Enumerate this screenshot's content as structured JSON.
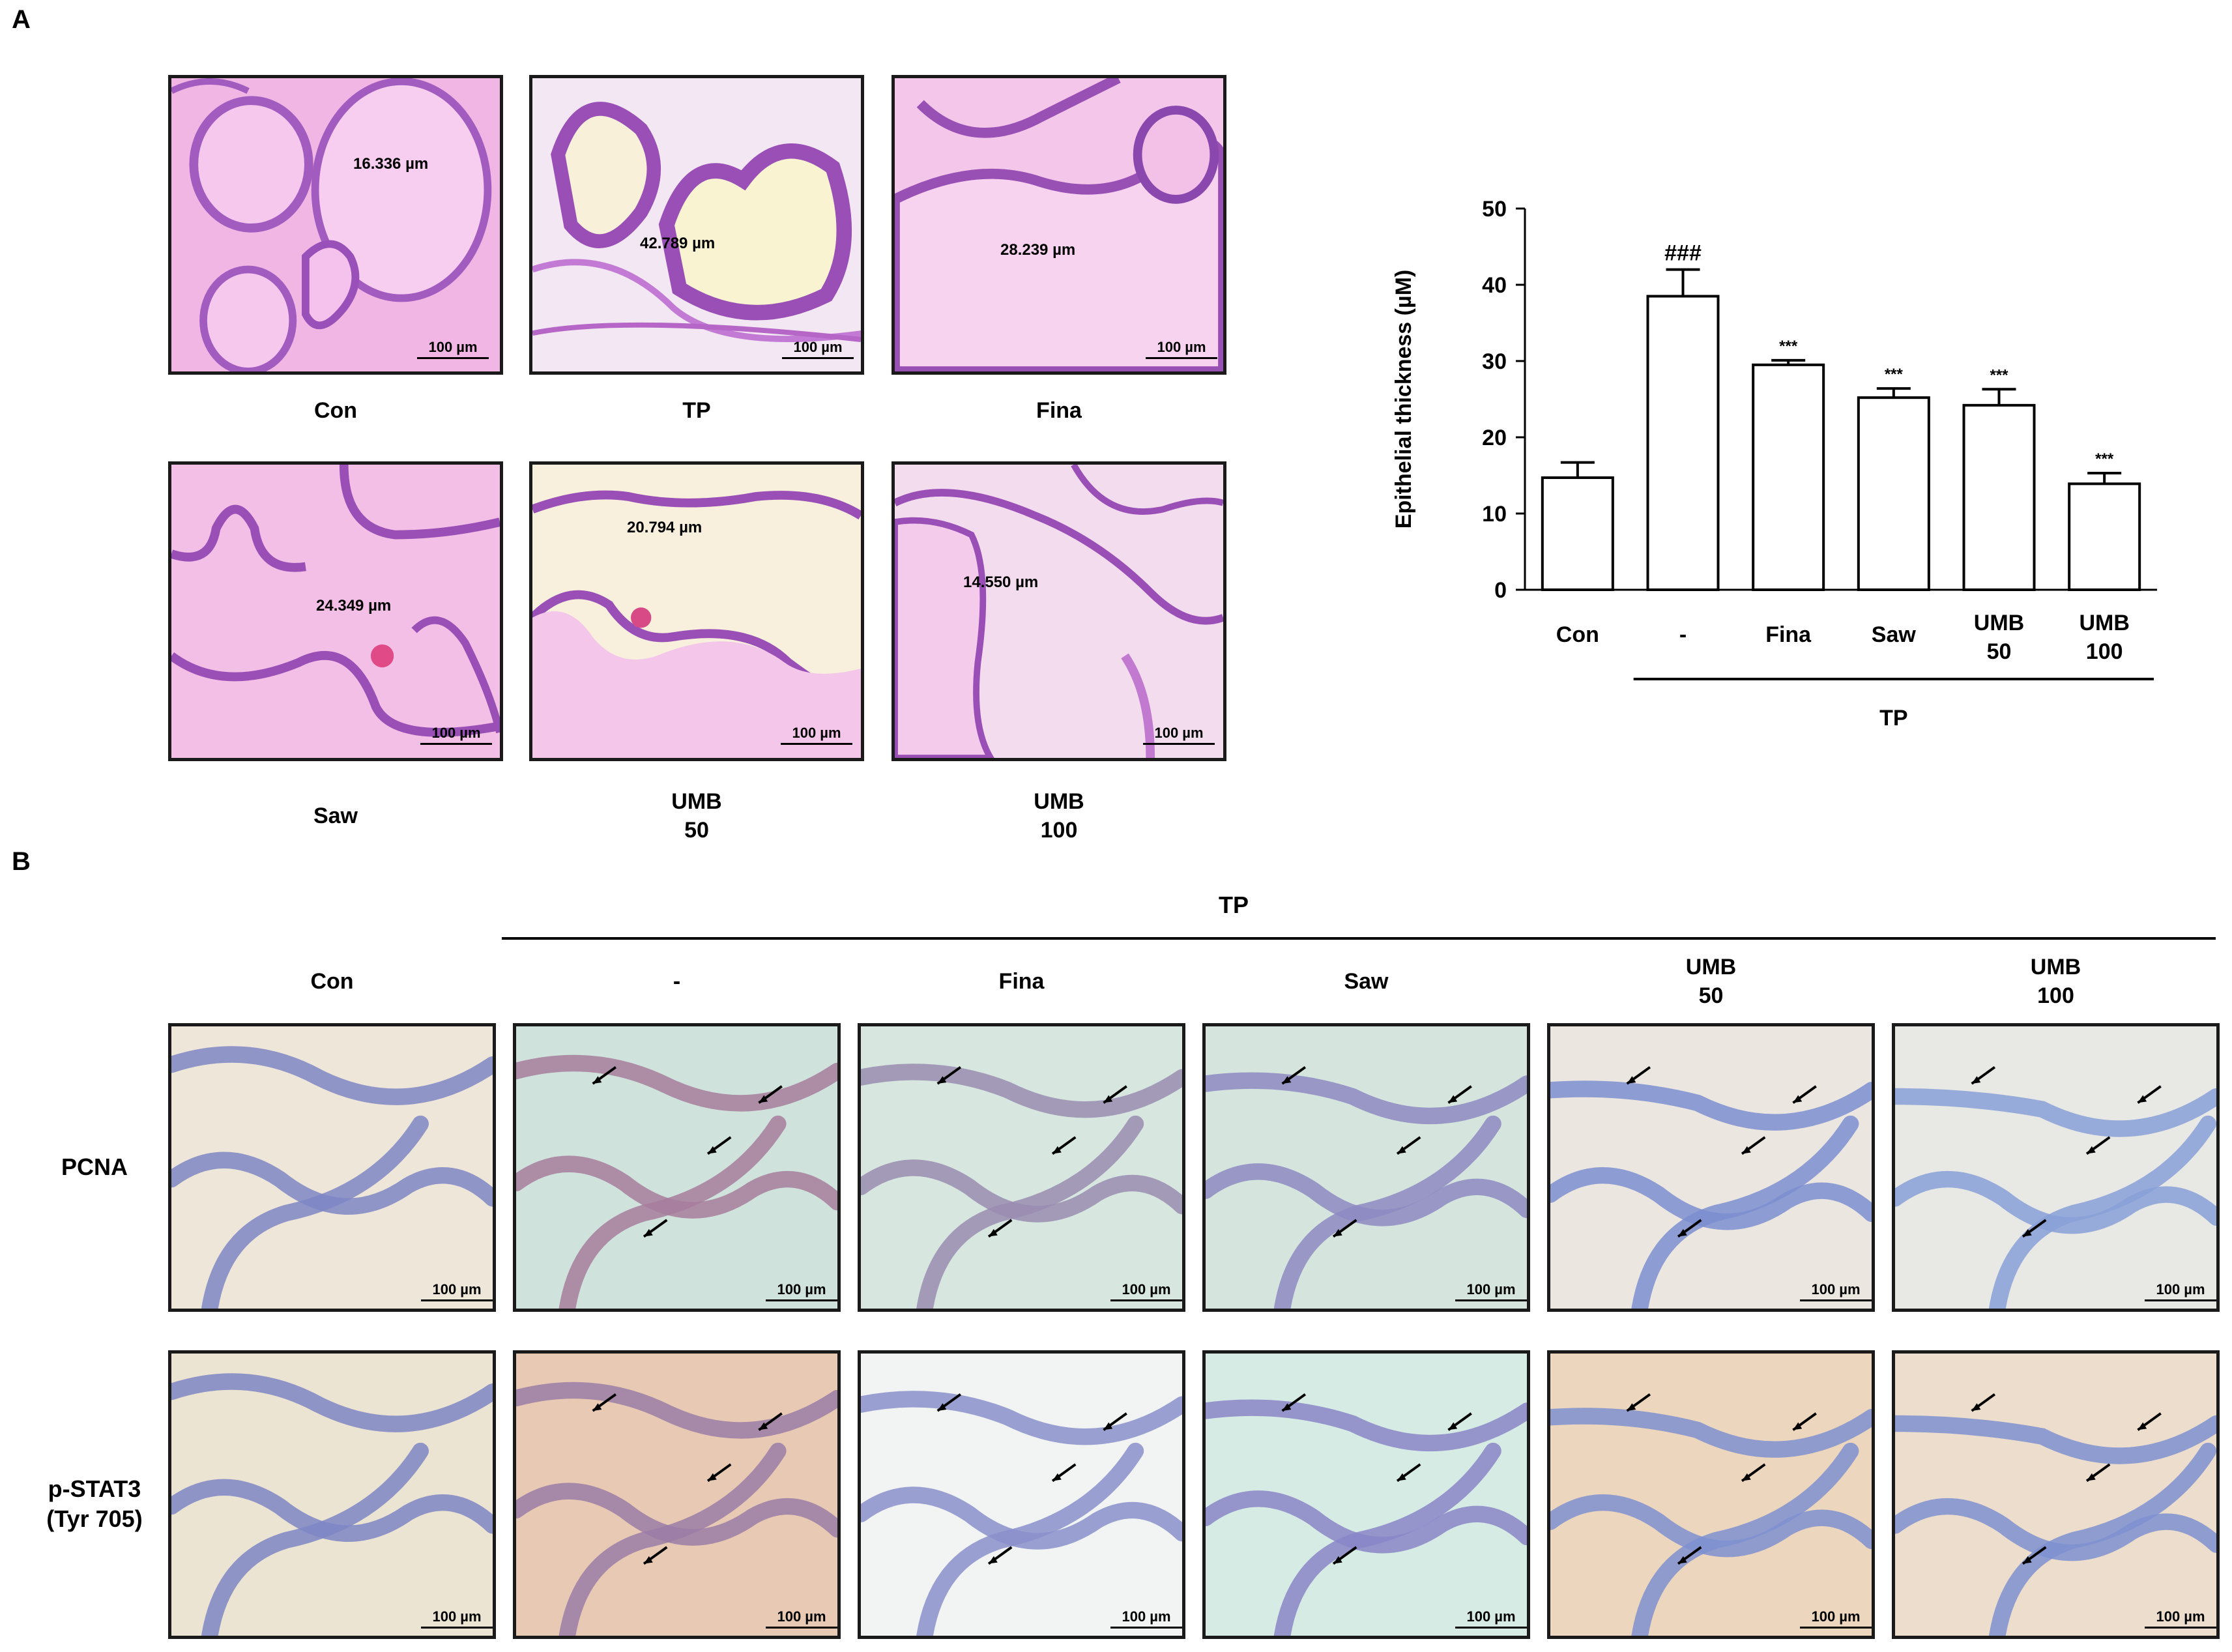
{
  "panels": {
    "a_letter": "A",
    "b_letter": "B"
  },
  "panel_a": {
    "images": [
      {
        "label": "Con",
        "measurement": "16.336 µm",
        "scale": "100 µm"
      },
      {
        "label": "TP",
        "measurement": "42.789 µm",
        "scale": "100 µm"
      },
      {
        "label": "Fina",
        "measurement": "28.239 µm",
        "scale": "100 µm"
      },
      {
        "label": "Saw",
        "measurement": "24.349 µm",
        "scale": "100 µm"
      },
      {
        "label": "UMB\n50",
        "measurement": "20.794 µm",
        "scale": "100 µm"
      },
      {
        "label": "UMB\n100",
        "measurement": "14.550 µm",
        "scale": "100 µm"
      }
    ]
  },
  "chart_data": {
    "type": "bar",
    "ylabel": "Epithelial thickness (µM)",
    "ylim": [
      0,
      50
    ],
    "yticks": [
      "0",
      "10",
      "20",
      "30",
      "40",
      "50"
    ],
    "categories": [
      "Con",
      "-",
      "Fina",
      "Saw",
      "UMB\n50",
      "UMB\n100"
    ],
    "values": [
      14.7,
      38.5,
      29.5,
      25.2,
      24.2,
      13.9
    ],
    "errors": [
      2.0,
      3.5,
      0.6,
      1.2,
      2.1,
      1.4
    ],
    "annotations": [
      "",
      "###",
      "***",
      "***",
      "***",
      "***"
    ],
    "group_label": "TP",
    "bar_color": "#ffffff",
    "edge_color": "#000000"
  },
  "panel_b": {
    "group_label": "TP",
    "columns": [
      "Con",
      "-",
      "Fina",
      "Saw",
      "UMB\n50",
      "UMB\n100"
    ],
    "rows": [
      "PCNA",
      "p-STAT3\n(Tyr 705)"
    ],
    "scale": "100 µm"
  }
}
